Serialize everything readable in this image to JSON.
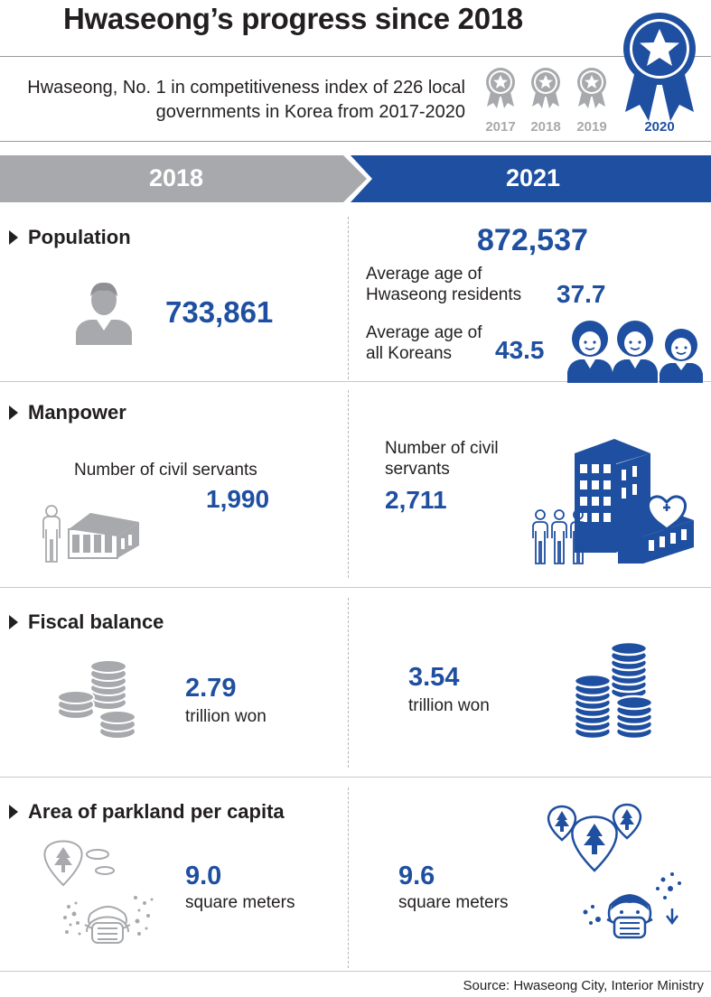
{
  "title": "Hwaseong’s progress since 2018",
  "subtitle": "Hwaseong, No. 1 in competitiveness index of 226 local governments in Korea from 2017-2020",
  "medals": [
    {
      "year": "2017",
      "active": false
    },
    {
      "year": "2018",
      "active": false
    },
    {
      "year": "2019",
      "active": false
    },
    {
      "year": "2020",
      "active": true
    }
  ],
  "columns": {
    "left": "2018",
    "right": "2021"
  },
  "sections": {
    "population": {
      "heading": "Population",
      "left_value": "733,861",
      "right_value": "872,537",
      "hwaseong_age_label": "Average age of Hwaseong residents",
      "hwaseong_age_value": "37.7",
      "korea_age_label": "Average age of all Koreans",
      "korea_age_value": "43.5"
    },
    "manpower": {
      "heading": "Manpower",
      "left_label": "Number of civil servants",
      "left_value": "1,990",
      "right_label": "Number of civil servants",
      "right_value": "2,711"
    },
    "fiscal": {
      "heading": "Fiscal balance",
      "left_value": "2.79",
      "left_unit": "trillion won",
      "right_value": "3.54",
      "right_unit": "trillion won"
    },
    "parkland": {
      "heading": "Area of parkland per capita",
      "left_value": "9.0",
      "left_unit": "square meters",
      "right_value": "9.6",
      "right_unit": "square meters"
    }
  },
  "source": "Source: Hwaseong City, Interior Ministry",
  "colors": {
    "blue": "#1f4fa0",
    "gray": "#a7a9ac",
    "dark": "#231f20"
  }
}
